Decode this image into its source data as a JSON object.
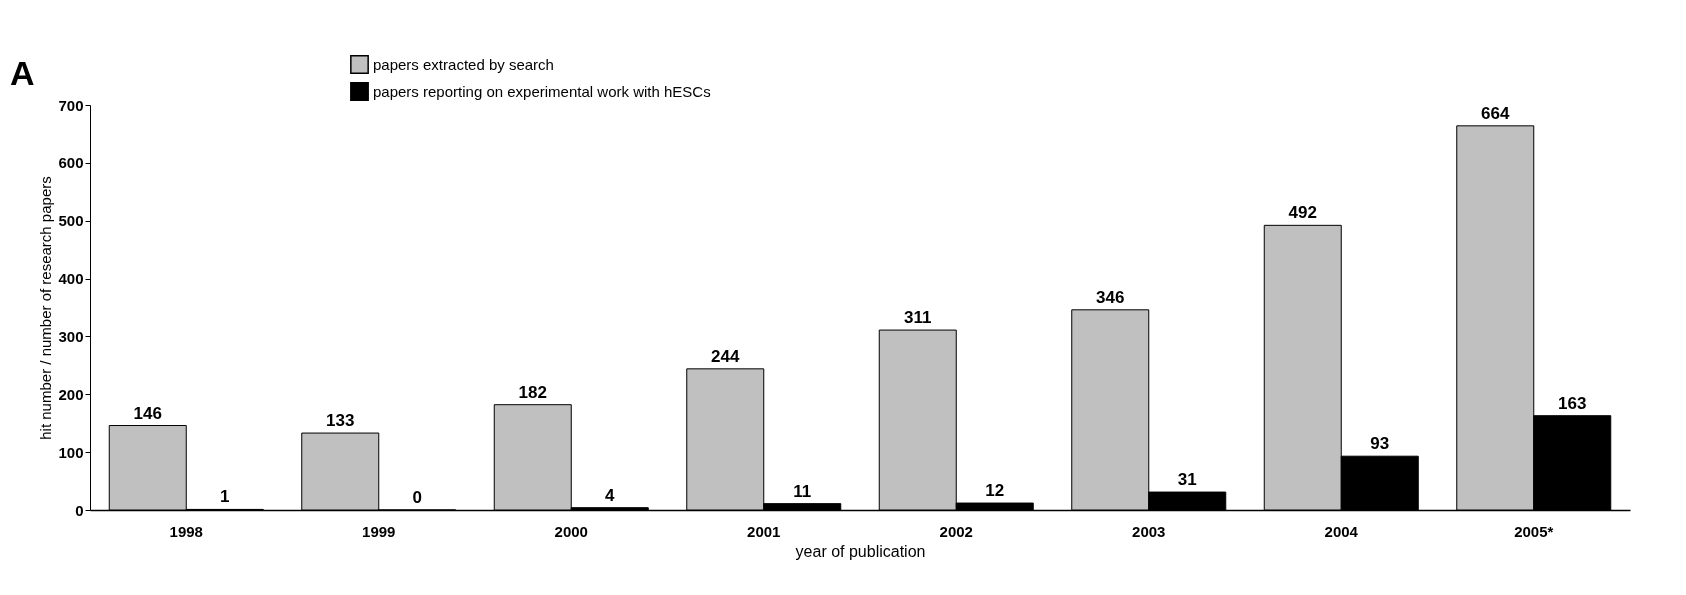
{
  "chart_data": {
    "type": "bar",
    "xlabel": "year of publication",
    "ylabel": "hit number / number of research papers",
    "categories": [
      "1998",
      "1999",
      "2000",
      "2001",
      "2002",
      "2003",
      "2004",
      "2005*"
    ],
    "series": [
      {
        "name": "papers extracted by search",
        "color": "#c0c0c0",
        "values": [
          146,
          133,
          182,
          244,
          311,
          346,
          492,
          664
        ]
      },
      {
        "name": "papers reporting on experimental work with hESCs",
        "color": "#000000",
        "values": [
          1,
          0,
          4,
          11,
          12,
          31,
          93,
          163
        ]
      }
    ],
    "ylim": [
      0,
      700
    ],
    "yticks": [
      0,
      100,
      200,
      300,
      400,
      500,
      600,
      700
    ],
    "grid": false,
    "legend": "top",
    "data_labels": true,
    "annotations": [
      "A"
    ]
  }
}
